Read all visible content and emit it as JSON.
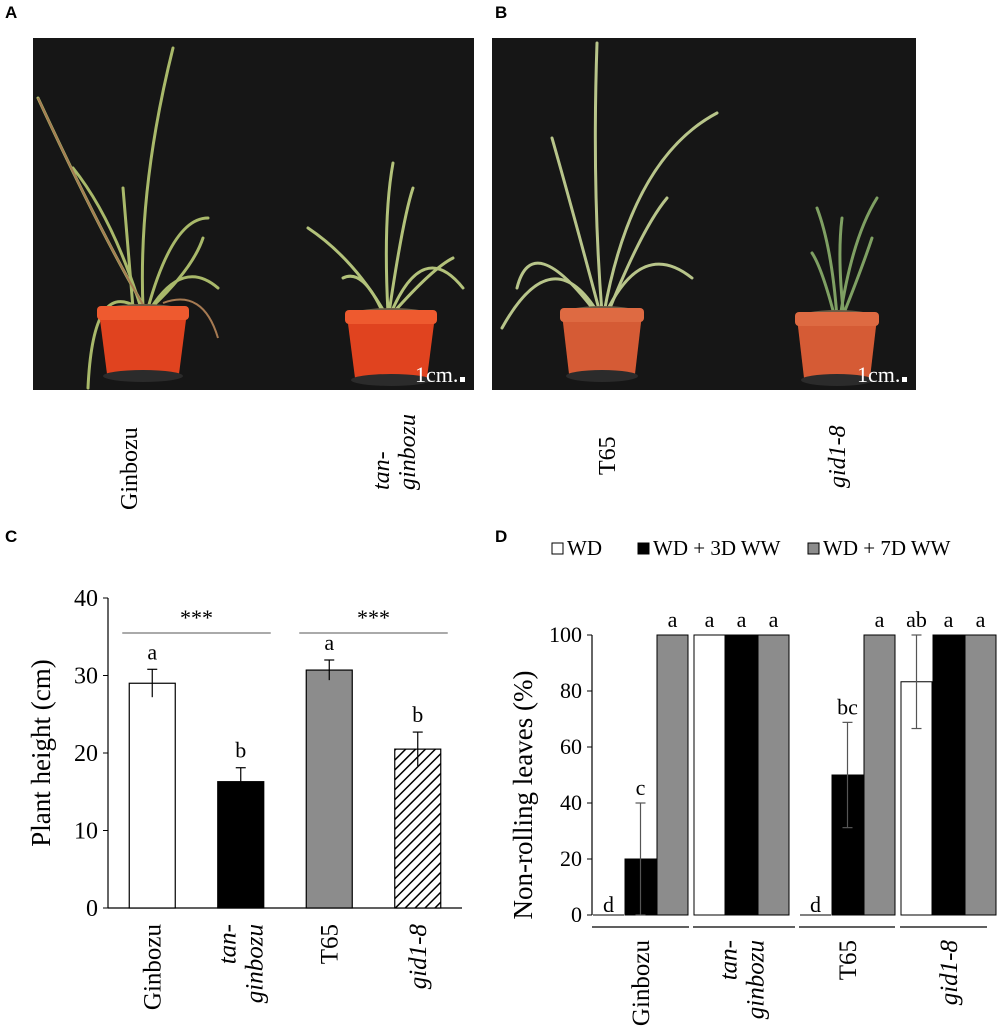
{
  "panels": {
    "a": {
      "letter": "A",
      "scale": "1cm.",
      "labels": [
        {
          "lines": [
            "Ginbozu"
          ],
          "italic": false
        },
        {
          "lines": [
            "tan-",
            "ginbozu"
          ],
          "italic": true
        }
      ]
    },
    "b": {
      "letter": "B",
      "scale": "1cm.",
      "labels": [
        {
          "lines": [
            "T65"
          ],
          "italic": false
        },
        {
          "lines": [
            "gid1-8"
          ],
          "italic": true
        }
      ]
    },
    "c": {
      "letter": "C"
    },
    "d": {
      "letter": "D"
    }
  },
  "colors": {
    "pot": "#e0431f",
    "pot_b": "#d55b35",
    "gray_bar": "#8c8c8c",
    "background_photo": "#161616"
  },
  "chart_data": [
    {
      "id": "C",
      "type": "bar",
      "ylabel": "Plant height (cm)",
      "ylim": [
        0,
        40
      ],
      "yticks": [
        0,
        10,
        20,
        30,
        40
      ],
      "categories": [
        {
          "lines": [
            "Ginbozu"
          ],
          "italic": false
        },
        {
          "lines": [
            "tan-",
            "ginbozu"
          ],
          "italic": true
        },
        {
          "lines": [
            "T65"
          ],
          "italic": false
        },
        {
          "lines": [
            "gid1-8"
          ],
          "italic": true
        }
      ],
      "values": [
        29,
        16.3,
        30.7,
        20.5
      ],
      "errors": [
        1.8,
        1.8,
        1.3,
        2.2
      ],
      "fills": [
        "white",
        "black",
        "gray",
        "hatch"
      ],
      "letters": [
        "a",
        "b",
        "a",
        "b"
      ],
      "significance": [
        {
          "label": "***",
          "from": 0,
          "to": 1
        },
        {
          "label": "***",
          "from": 2,
          "to": 3
        }
      ]
    },
    {
      "id": "D",
      "type": "bar",
      "ylabel": "Non-rolling leaves (%)",
      "ylim": [
        0,
        100
      ],
      "yticks": [
        0,
        20,
        40,
        60,
        80,
        100
      ],
      "legend_position": "top",
      "groups": [
        {
          "lines": [
            "Ginbozu"
          ],
          "italic": false
        },
        {
          "lines": [
            "tan-",
            "ginbozu"
          ],
          "italic": true
        },
        {
          "lines": [
            "T65"
          ],
          "italic": false
        },
        {
          "lines": [
            "gid1-8"
          ],
          "italic": true
        }
      ],
      "series": [
        {
          "name": "WD",
          "color": "#ffffff",
          "values": [
            0,
            100,
            0,
            83.3
          ],
          "errors": [
            0,
            0,
            0,
            16.7
          ],
          "letters": [
            "d",
            "a",
            "d",
            "ab"
          ]
        },
        {
          "name": "WD + 3D WW",
          "color": "#000000",
          "values": [
            20,
            100,
            50,
            100
          ],
          "errors": [
            20,
            0,
            18.8,
            0
          ],
          "letters": [
            "c",
            "a",
            "bc",
            "a"
          ]
        },
        {
          "name": "WD + 7D WW",
          "color": "#8c8c8c",
          "values": [
            100,
            100,
            100,
            100
          ],
          "errors": [
            0,
            0,
            0,
            0
          ],
          "letters": [
            "a",
            "a",
            "a",
            "a"
          ]
        }
      ]
    }
  ]
}
